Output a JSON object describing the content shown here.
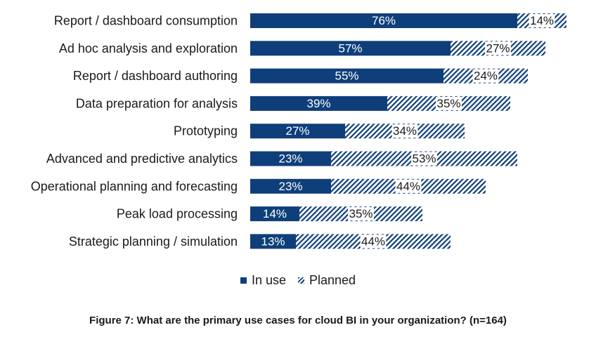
{
  "chart_data": {
    "type": "bar",
    "orientation": "horizontal",
    "stacked": true,
    "categories": [
      "Report / dashboard consumption",
      "Ad hoc analysis and exploration",
      "Report / dashboard authoring",
      "Data preparation for analysis",
      "Prototyping",
      "Advanced and predictive analytics",
      "Operational planning and forecasting",
      "Peak load processing",
      "Strategic planning / simulation"
    ],
    "series": [
      {
        "name": "In use",
        "values": [
          76,
          57,
          55,
          39,
          27,
          23,
          23,
          14,
          13
        ],
        "color": "#0f3f7a"
      },
      {
        "name": "Planned",
        "values": [
          14,
          27,
          24,
          35,
          34,
          53,
          44,
          35,
          44
        ],
        "color": "#0f3f7a",
        "pattern": "diagonal-hatch"
      }
    ],
    "value_suffix": "%",
    "grid": false,
    "legend_position": "bottom"
  },
  "legend": {
    "in_use": "In use",
    "planned": "Planned"
  },
  "caption": "Figure 7: What are the primary use cases for cloud BI in your organization? (n=164)"
}
